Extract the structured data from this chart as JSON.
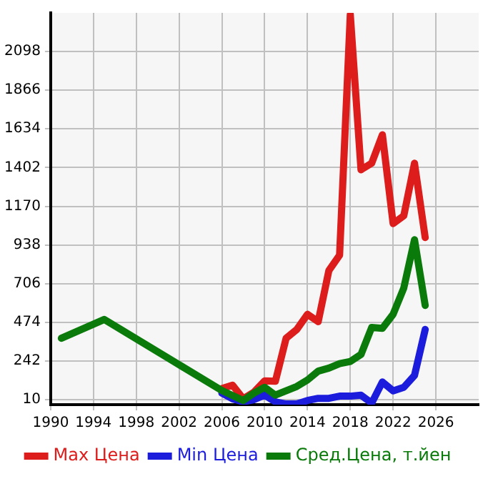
{
  "chart_data": {
    "type": "line",
    "xlim": [
      1990,
      2030
    ],
    "xticks": [
      1990,
      1994,
      1998,
      2002,
      2006,
      2010,
      2014,
      2018,
      2022,
      2026
    ],
    "ylim": [
      -20,
      2330
    ],
    "yticks": [
      10,
      242,
      474,
      706,
      938,
      1170,
      1402,
      1634,
      1866,
      2098
    ],
    "grid": true,
    "legend": "bottom",
    "marker": "none",
    "line_style": "solid",
    "series": [
      {
        "name": "Max Цена",
        "color": "#dd1c1c",
        "x": [
          2006,
          2007,
          2008,
          2009,
          2010,
          2011,
          2012,
          2013,
          2014,
          2015,
          2016,
          2017,
          2018,
          2019,
          2020,
          2021,
          2022,
          2023,
          2024,
          2025
        ],
        "values": [
          76,
          97,
          15,
          55,
          123,
          120,
          378,
          431,
          522,
          478,
          785,
          877,
          2320,
          1389,
          1428,
          1599,
          1066,
          1113,
          1428,
          982
        ]
      },
      {
        "name": "Min Цена",
        "color": "#1c1cdd",
        "x": [
          2006,
          2007,
          2008,
          2009,
          2010,
          2011,
          2012,
          2013,
          2014,
          2015,
          2016,
          2017,
          2018,
          2019,
          2020,
          2021,
          2022,
          2023,
          2024,
          2025
        ],
        "values": [
          49,
          15,
          -3,
          10,
          37,
          -3,
          -16,
          -16,
          5,
          18,
          18,
          31,
          31,
          37,
          -10,
          116,
          63,
          84,
          155,
          431
        ]
      },
      {
        "name": "Сред.Цена, т.йен",
        "color": "#0a7a0a",
        "x": [
          1991,
          1995,
          2006,
          2007,
          2008,
          2009,
          2010,
          2011,
          2012,
          2013,
          2014,
          2015,
          2016,
          2017,
          2018,
          2019,
          2020,
          2021,
          2022,
          2023,
          2024,
          2025
        ],
        "values": [
          378,
          491,
          65,
          35,
          5,
          49,
          84,
          37,
          63,
          89,
          128,
          181,
          199,
          226,
          239,
          281,
          443,
          438,
          522,
          680,
          969,
          575
        ]
      }
    ]
  }
}
